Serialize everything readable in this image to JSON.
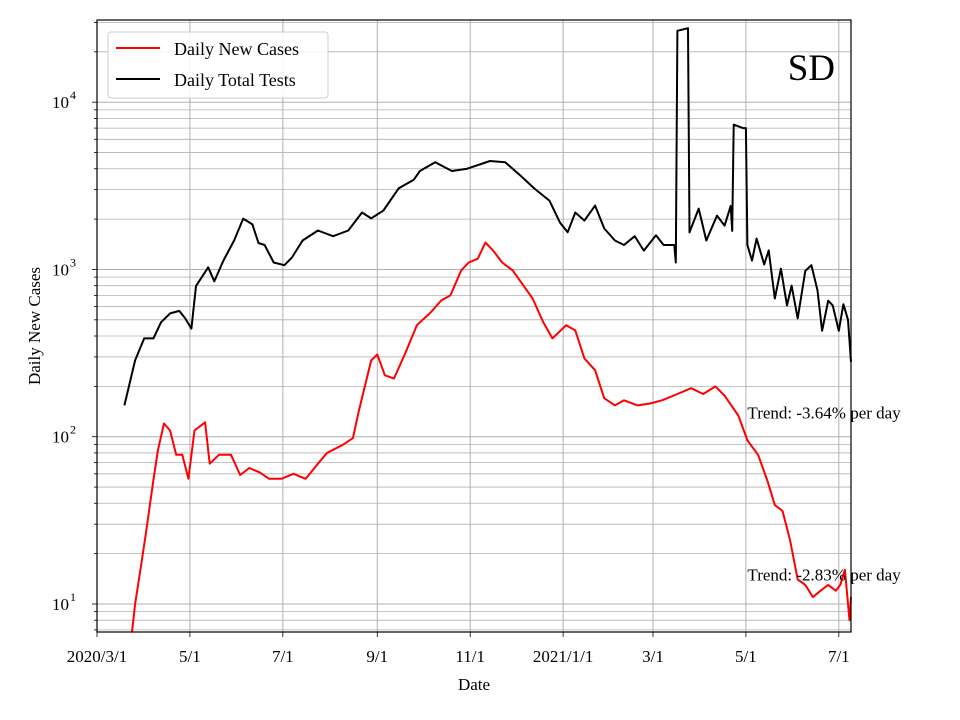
{
  "chart_data": {
    "type": "line",
    "title": "SD",
    "xlabel": "Date",
    "ylabel": "Daily New Cases",
    "yscale": "log",
    "ylim": [
      6.8,
      31000
    ],
    "xlim": [
      "2020-03-01",
      "2021-07-09"
    ],
    "grid": true,
    "legend_position": "top-left",
    "x_tick_labels": [
      {
        "date": "2020-03-01",
        "label": "2020/3/1"
      },
      {
        "date": "2020-05-01",
        "label": "5/1"
      },
      {
        "date": "2020-07-01",
        "label": "7/1"
      },
      {
        "date": "2020-09-01",
        "label": "9/1"
      },
      {
        "date": "2020-11-01",
        "label": "11/1"
      },
      {
        "date": "2021-01-01",
        "label": "2021/1/1"
      },
      {
        "date": "2021-03-01",
        "label": "3/1"
      },
      {
        "date": "2021-05-01",
        "label": "5/1"
      },
      {
        "date": "2021-07-01",
        "label": "7/1"
      }
    ],
    "y_tick_labels": [
      {
        "value": 10,
        "base": "10",
        "exp": "1"
      },
      {
        "value": 100,
        "base": "10",
        "exp": "2"
      },
      {
        "value": 1000,
        "base": "10",
        "exp": "3"
      },
      {
        "value": 10000,
        "base": "10",
        "exp": "4"
      }
    ],
    "annotations": [
      {
        "text": "Trend: -3.64% per day",
        "date": "2021-05-02",
        "value": 140
      },
      {
        "text": "Trend: -2.83% per day",
        "date": "2021-05-02",
        "value": 15
      }
    ],
    "series": [
      {
        "name": "Daily New Cases",
        "color": "#ff0000",
        "points": [
          [
            "2020-03-24",
            6.8
          ],
          [
            "2020-03-26",
            10
          ],
          [
            "2020-03-29",
            15
          ],
          [
            "2020-04-02",
            26
          ],
          [
            "2020-04-07",
            55
          ],
          [
            "2020-04-10",
            83
          ],
          [
            "2020-04-14",
            120
          ],
          [
            "2020-04-18",
            109
          ],
          [
            "2020-04-22",
            78
          ],
          [
            "2020-04-26",
            78
          ],
          [
            "2020-04-30",
            56
          ],
          [
            "2020-05-04",
            109
          ],
          [
            "2020-05-11",
            122
          ],
          [
            "2020-05-14",
            69
          ],
          [
            "2020-05-20",
            78
          ],
          [
            "2020-05-28",
            78
          ],
          [
            "2020-06-03",
            59
          ],
          [
            "2020-06-09",
            65
          ],
          [
            "2020-06-16",
            61
          ],
          [
            "2020-06-22",
            56
          ],
          [
            "2020-06-30",
            56
          ],
          [
            "2020-07-08",
            60
          ],
          [
            "2020-07-16",
            56
          ],
          [
            "2020-07-24",
            69
          ],
          [
            "2020-07-30",
            80
          ],
          [
            "2020-08-09",
            89
          ],
          [
            "2020-08-16",
            98
          ],
          [
            "2020-08-20",
            144
          ],
          [
            "2020-08-28",
            286
          ],
          [
            "2020-09-01",
            310
          ],
          [
            "2020-09-06",
            233
          ],
          [
            "2020-09-12",
            223
          ],
          [
            "2020-09-19",
            310
          ],
          [
            "2020-09-27",
            464
          ],
          [
            "2020-10-06",
            553
          ],
          [
            "2020-10-13",
            653
          ],
          [
            "2020-10-19",
            700
          ],
          [
            "2020-10-26",
            985
          ],
          [
            "2020-10-31",
            1100
          ],
          [
            "2020-11-06",
            1160
          ],
          [
            "2020-11-11",
            1450
          ],
          [
            "2020-11-16",
            1300
          ],
          [
            "2020-11-22",
            1100
          ],
          [
            "2020-11-29",
            985
          ],
          [
            "2020-12-06",
            800
          ],
          [
            "2020-12-12",
            670
          ],
          [
            "2020-12-19",
            483
          ],
          [
            "2020-12-25",
            387
          ],
          [
            "2021-01-03",
            464
          ],
          [
            "2021-01-09",
            432
          ],
          [
            "2021-01-15",
            294
          ],
          [
            "2021-01-22",
            250
          ],
          [
            "2021-01-28",
            170
          ],
          [
            "2021-02-04",
            154
          ],
          [
            "2021-02-10",
            165
          ],
          [
            "2021-02-19",
            154
          ],
          [
            "2021-02-27",
            158
          ],
          [
            "2021-03-07",
            165
          ],
          [
            "2021-03-17",
            180
          ],
          [
            "2021-03-26",
            195
          ],
          [
            "2021-04-03",
            180
          ],
          [
            "2021-04-11",
            200
          ],
          [
            "2021-04-17",
            176
          ],
          [
            "2021-04-26",
            134
          ],
          [
            "2021-05-02",
            95
          ],
          [
            "2021-05-09",
            78
          ],
          [
            "2021-05-15",
            55
          ],
          [
            "2021-05-20",
            39
          ],
          [
            "2021-05-25",
            36
          ],
          [
            "2021-05-30",
            24
          ],
          [
            "2021-06-04",
            14
          ],
          [
            "2021-06-09",
            13
          ],
          [
            "2021-06-14",
            11
          ],
          [
            "2021-06-19",
            12
          ],
          [
            "2021-06-24",
            13
          ],
          [
            "2021-06-29",
            12
          ],
          [
            "2021-07-02",
            13
          ],
          [
            "2021-07-05",
            16
          ],
          [
            "2021-07-08",
            8
          ],
          [
            "2021-07-09",
            11
          ]
        ]
      },
      {
        "name": "Daily Total Tests",
        "color": "#000000",
        "points": [
          [
            "2020-03-19",
            154
          ],
          [
            "2020-03-26",
            286
          ],
          [
            "2020-04-01",
            387
          ],
          [
            "2020-04-07",
            387
          ],
          [
            "2020-04-12",
            483
          ],
          [
            "2020-04-18",
            546
          ],
          [
            "2020-04-24",
            565
          ],
          [
            "2020-04-28",
            509
          ],
          [
            "2020-05-02",
            443
          ],
          [
            "2020-05-05",
            795
          ],
          [
            "2020-05-13",
            1030
          ],
          [
            "2020-05-17",
            850
          ],
          [
            "2020-05-23",
            1130
          ],
          [
            "2020-05-30",
            1490
          ],
          [
            "2020-06-05",
            2015
          ],
          [
            "2020-06-11",
            1860
          ],
          [
            "2020-06-15",
            1440
          ],
          [
            "2020-06-19",
            1400
          ],
          [
            "2020-06-25",
            1100
          ],
          [
            "2020-07-02",
            1060
          ],
          [
            "2020-07-07",
            1180
          ],
          [
            "2020-07-14",
            1490
          ],
          [
            "2020-07-24",
            1710
          ],
          [
            "2020-08-03",
            1580
          ],
          [
            "2020-08-13",
            1710
          ],
          [
            "2020-08-22",
            2190
          ],
          [
            "2020-08-28",
            2020
          ],
          [
            "2020-09-05",
            2250
          ],
          [
            "2020-09-15",
            3050
          ],
          [
            "2020-09-25",
            3440
          ],
          [
            "2020-09-29",
            3880
          ],
          [
            "2020-10-09",
            4380
          ],
          [
            "2020-10-20",
            3880
          ],
          [
            "2020-10-30",
            4000
          ],
          [
            "2020-11-14",
            4450
          ],
          [
            "2020-11-24",
            4380
          ],
          [
            "2020-12-04",
            3640
          ],
          [
            "2020-12-13",
            3050
          ],
          [
            "2020-12-23",
            2580
          ],
          [
            "2020-12-30",
            1900
          ],
          [
            "2021-01-04",
            1670
          ],
          [
            "2021-01-09",
            2190
          ],
          [
            "2021-01-15",
            1960
          ],
          [
            "2021-01-22",
            2410
          ],
          [
            "2021-01-28",
            1760
          ],
          [
            "2021-02-04",
            1490
          ],
          [
            "2021-02-10",
            1400
          ],
          [
            "2021-02-17",
            1580
          ],
          [
            "2021-02-23",
            1297
          ],
          [
            "2021-03-03",
            1600
          ],
          [
            "2021-03-08",
            1400
          ],
          [
            "2021-03-15",
            1400
          ],
          [
            "2021-03-16",
            1100
          ],
          [
            "2021-03-17",
            26700
          ],
          [
            "2021-03-24",
            27700
          ],
          [
            "2021-03-25",
            1665
          ],
          [
            "2021-03-31",
            2310
          ],
          [
            "2021-04-05",
            1490
          ],
          [
            "2021-04-12",
            2100
          ],
          [
            "2021-04-17",
            1830
          ],
          [
            "2021-04-21",
            2400
          ],
          [
            "2021-04-22",
            1700
          ],
          [
            "2021-04-23",
            7350
          ],
          [
            "2021-04-29",
            7000
          ],
          [
            "2021-05-01",
            7000
          ],
          [
            "2021-05-02",
            1400
          ],
          [
            "2021-05-05",
            1130
          ],
          [
            "2021-05-08",
            1530
          ],
          [
            "2021-05-13",
            1070
          ],
          [
            "2021-05-16",
            1300
          ],
          [
            "2021-05-20",
            670
          ],
          [
            "2021-05-24",
            1010
          ],
          [
            "2021-05-28",
            610
          ],
          [
            "2021-05-31",
            800
          ],
          [
            "2021-06-04",
            510
          ],
          [
            "2021-06-09",
            980
          ],
          [
            "2021-06-13",
            1060
          ],
          [
            "2021-06-17",
            750
          ],
          [
            "2021-06-20",
            430
          ],
          [
            "2021-06-24",
            650
          ],
          [
            "2021-06-27",
            610
          ],
          [
            "2021-07-01",
            430
          ],
          [
            "2021-07-04",
            620
          ],
          [
            "2021-07-07",
            500
          ],
          [
            "2021-07-09",
            280
          ]
        ]
      }
    ]
  }
}
